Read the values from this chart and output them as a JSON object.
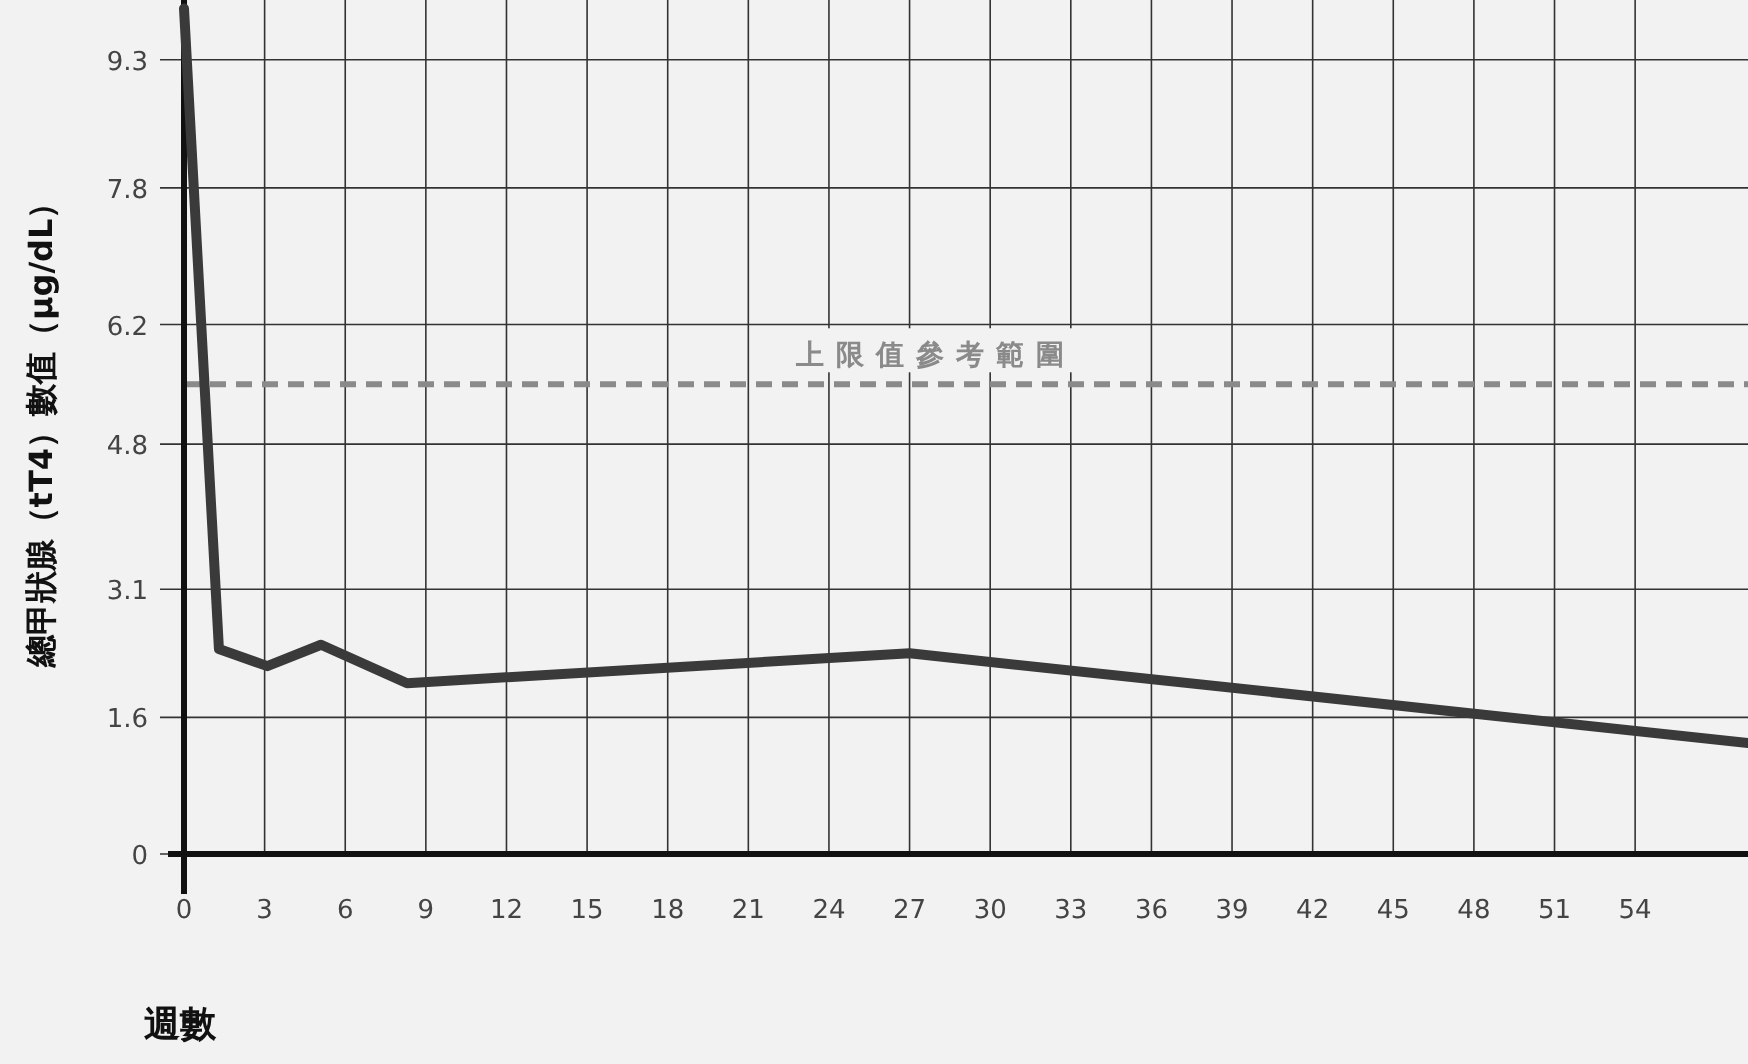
{
  "chart_data": {
    "type": "line",
    "xlabel": "週數",
    "ylabel": "總甲狀腺（tT4）數值（μg/dL）",
    "x": [
      0,
      1.3,
      3.1,
      5.1,
      8.3,
      27,
      58.2
    ],
    "series": [
      {
        "color": "#3a3a3a",
        "values": [
          9.9,
          2.4,
          2.2,
          2.45,
          2.0,
          2.35,
          1.3
        ]
      }
    ],
    "xlim": [
      0,
      58.2
    ],
    "xticks": [
      0,
      3,
      6,
      9,
      12,
      15,
      18,
      21,
      24,
      27,
      30,
      33,
      36,
      39,
      42,
      45,
      48,
      51,
      54
    ],
    "ylim": [
      0,
      10
    ],
    "yticks": [
      0,
      1.6,
      3.1,
      4.8,
      6.2,
      7.8,
      9.3
    ],
    "grid": true,
    "marker": "none",
    "line_style": "solid",
    "ref_lines": [
      {
        "axis": "y",
        "value": 5.5,
        "label": "上限值參考範圍",
        "color": "#8a8a8a",
        "line_style": "dashed"
      }
    ]
  }
}
